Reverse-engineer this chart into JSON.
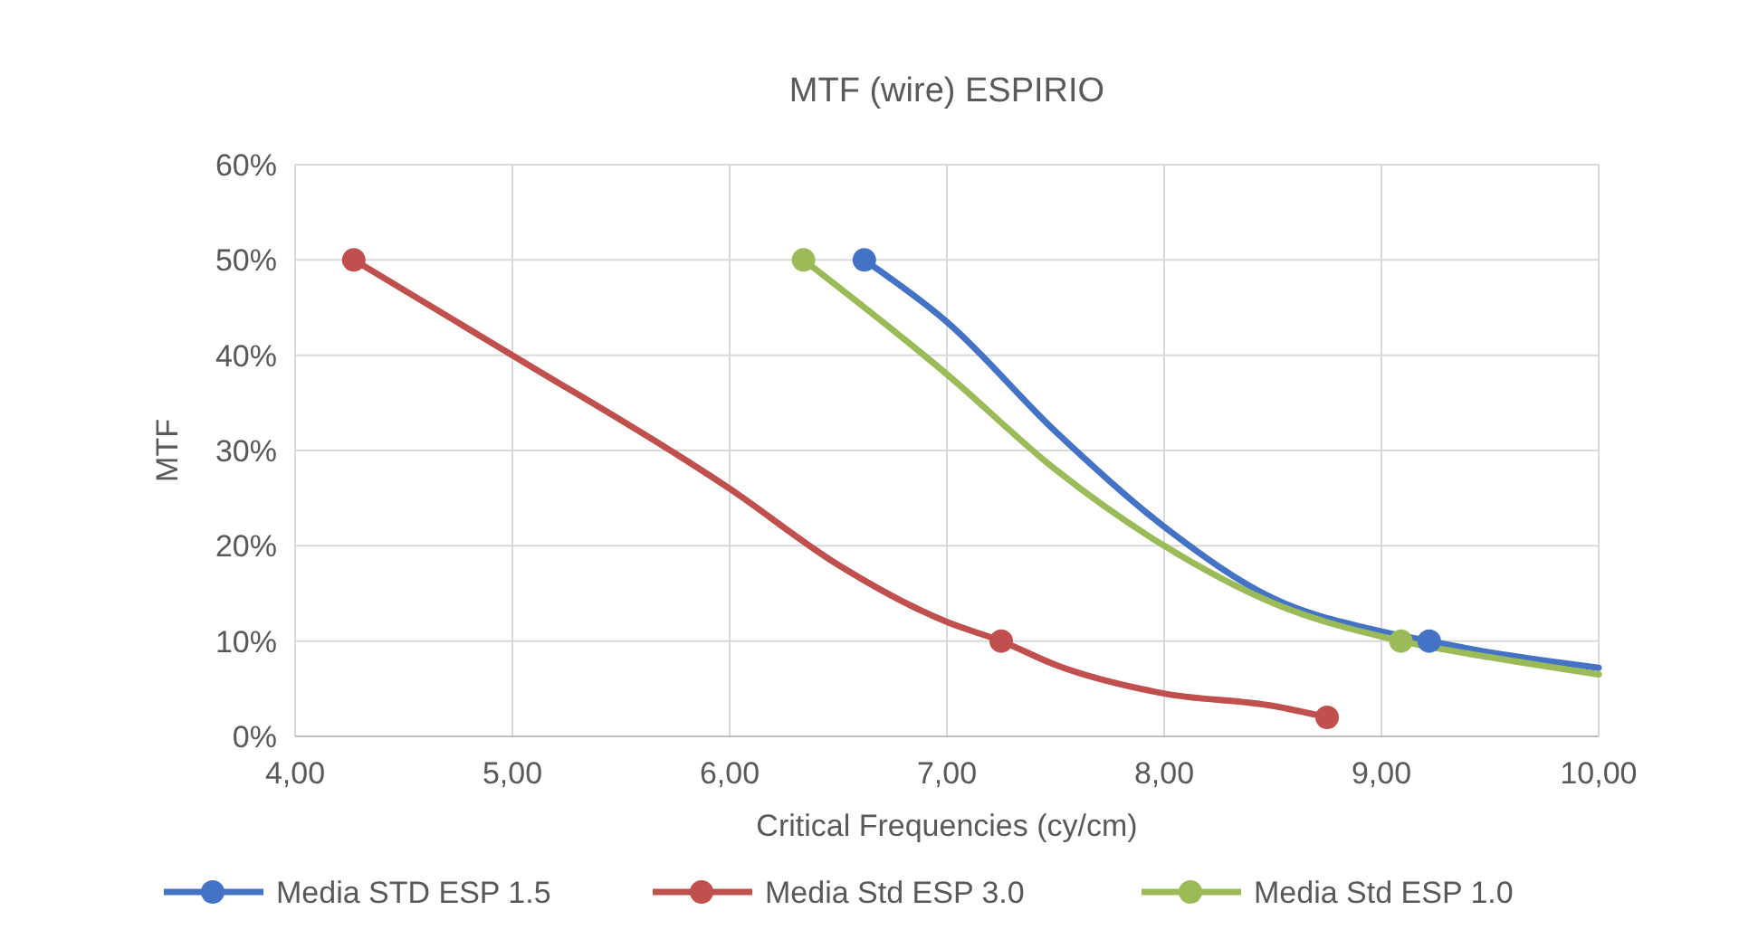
{
  "chart_data": {
    "type": "line",
    "title": "MTF (wire) ESPIRIO",
    "xlabel": "Critical Frequencies (cy/cm)",
    "ylabel": "MTF",
    "xlim": [
      4,
      10
    ],
    "xticks": [
      {
        "value": 4,
        "label": "4,00"
      },
      {
        "value": 5,
        "label": "5,00"
      },
      {
        "value": 6,
        "label": "6,00"
      },
      {
        "value": 7,
        "label": "7,00"
      },
      {
        "value": 8,
        "label": "8,00"
      },
      {
        "value": 9,
        "label": "9,00"
      },
      {
        "value": 10,
        "label": "10,00"
      }
    ],
    "ylim": [
      0,
      60
    ],
    "yticks": [
      {
        "value": 0,
        "label": "0%"
      },
      {
        "value": 10,
        "label": "10%"
      },
      {
        "value": 20,
        "label": "20%"
      },
      {
        "value": 30,
        "label": "30%"
      },
      {
        "value": 40,
        "label": "40%"
      },
      {
        "value": 50,
        "label": "50%"
      },
      {
        "value": 60,
        "label": "60%"
      }
    ],
    "grid": true,
    "legend": "bottom",
    "marker": "circle",
    "series": [
      {
        "name": "Media STD ESP 1.5",
        "color": "#4472c4",
        "marker": "none",
        "x": [
          6.62,
          7.0,
          7.5,
          8.0,
          8.5,
          9.0,
          9.22,
          9.5,
          10.0
        ],
        "values": [
          50,
          43.5,
          32,
          22,
          14.5,
          11,
          10,
          8.8,
          7.2
        ]
      },
      {
        "name": "Media Std ESP 3.0",
        "color": "#c0504d",
        "marker": "none",
        "x": [
          4.27,
          5.0,
          6.0,
          6.5,
          7.0,
          7.25,
          7.5,
          8.0,
          8.5,
          8.75
        ],
        "values": [
          50,
          40,
          26,
          18,
          12,
          10,
          7.5,
          4.5,
          3.2,
          2
        ]
      },
      {
        "name": "Media Std ESP 1.0",
        "color": "#9bbb59",
        "marker": "none",
        "x": [
          6.34,
          7.0,
          7.5,
          8.0,
          8.5,
          9.09,
          9.5,
          10.0
        ],
        "values": [
          50,
          38,
          28,
          20,
          14,
          10,
          8.3,
          6.5
        ]
      },
      {
        "type": "scatter",
        "color": "#4472c4",
        "x": [
          6.62,
          9.22
        ],
        "values": [
          50,
          10
        ]
      },
      {
        "type": "scatter",
        "color": "#c0504d",
        "x": [
          4.27,
          7.25,
          8.75
        ],
        "values": [
          50,
          10,
          2
        ]
      },
      {
        "type": "scatter",
        "color": "#9bbb59",
        "x": [
          6.34,
          9.09
        ],
        "values": [
          50,
          10
        ]
      }
    ]
  }
}
